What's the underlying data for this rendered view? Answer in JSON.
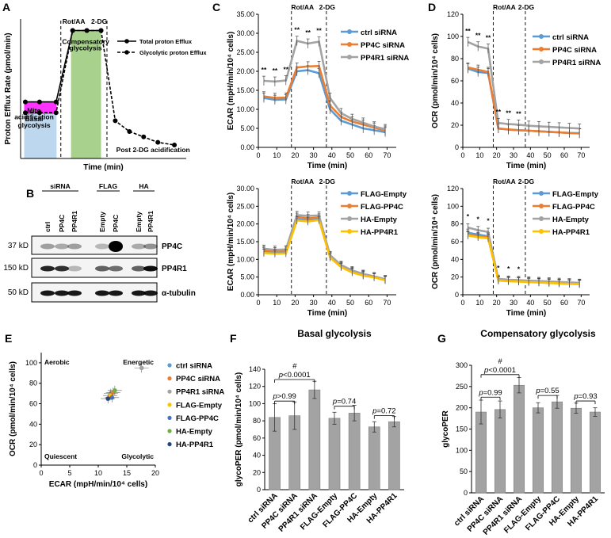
{
  "panels": {
    "A": "A",
    "B": "B",
    "C": "C",
    "D": "D",
    "E": "E",
    "F": "F",
    "G": "G"
  },
  "colors": {
    "gray": "#a3a3a3",
    "blue": "#5b9bd5",
    "orange": "#ed7d31",
    "yellow": "#ffc000",
    "darkblue": "#4472c4",
    "green": "#70ad47",
    "navy": "#264478",
    "pink": "#ff33ff",
    "lightblue": "#bdd7ee",
    "lightgreen": "#a9d18e"
  },
  "chart_data": [
    {
      "panel": "A",
      "type": "line",
      "ylabel": "Proton Efflux Rate (pmol/min)",
      "xlabel": "Time (min)",
      "markers": {
        "rot": "Rot/AA",
        "dg": "2-DG"
      },
      "regions": {
        "mito": "Mito acidification",
        "basal": "Basal glycolysis",
        "comp": "Compensatory glycolysis",
        "post": "Post 2-DG acidification"
      },
      "series": [
        {
          "name": "Total proton Efflux",
          "x": [
            2,
            8,
            15,
            22,
            28,
            34
          ],
          "y": [
            0.42,
            0.42,
            0.42,
            0.95,
            0.95,
            0.95
          ]
        },
        {
          "name": "Glycolytic proton Efflux",
          "x": [
            2,
            8,
            15,
            22,
            28,
            34,
            40,
            46,
            52,
            58,
            65
          ],
          "y": [
            0.34,
            0.34,
            0.34,
            0.95,
            0.95,
            0.95,
            0.28,
            0.2,
            0.16,
            0.12,
            0.1
          ]
        }
      ]
    },
    {
      "panel": "B",
      "type": "blot",
      "groups": [
        "siRNA",
        "FLAG",
        "HA"
      ],
      "lanes": [
        "ctrl",
        "PP4C",
        "PP4R1",
        "Empty",
        "PP4C",
        "Empty",
        "PP4R1"
      ],
      "mw": [
        "37 kD",
        "150 kD",
        "50 kD"
      ],
      "bands": [
        "PP4C",
        "PP4R1",
        "α-tubulin"
      ]
    },
    {
      "panel": "C1",
      "type": "line",
      "ylabel": "ECAR (mpH/min/10⁴ cells)",
      "xlabel": "Time (min)",
      "xlim": [
        0,
        75
      ],
      "ylim": [
        0,
        35
      ],
      "yticks": [
        "0.00",
        "5.00",
        "10.00",
        "15.00",
        "20.00",
        "25.00",
        "30.00",
        "35.00"
      ],
      "xticks": [
        "0",
        "10",
        "20",
        "30",
        "40",
        "50",
        "60",
        "70"
      ],
      "markers": {
        "rot": "Rot/AA",
        "dg": "2-DG"
      },
      "sig": "**",
      "x": [
        3,
        9,
        15,
        21,
        27,
        33,
        39,
        45,
        51,
        57,
        63,
        69
      ],
      "series": [
        {
          "name": "ctrl siRNA",
          "values": [
            13,
            12.5,
            12.6,
            20,
            20.3,
            19.5,
            10,
            7,
            6,
            5,
            4.5,
            4
          ]
        },
        {
          "name": "PP4C siRNA",
          "values": [
            13.4,
            13,
            13.1,
            21,
            21.3,
            21.4,
            11,
            8,
            6.8,
            6,
            5.2,
            4.4
          ]
        },
        {
          "name": "PP4R1 siRNA",
          "values": [
            17.5,
            17.3,
            17.6,
            28,
            27.3,
            27.8,
            13,
            9,
            7.5,
            6.5,
            5.5,
            4.8
          ]
        }
      ]
    },
    {
      "panel": "C2",
      "type": "line",
      "ylabel": "ECAR (mpH/min/10⁴ cells)",
      "xlabel": "Time (min)",
      "xlim": [
        0,
        75
      ],
      "ylim": [
        0,
        30
      ],
      "yticks": [
        "0.00",
        "5.00",
        "10.00",
        "15.00",
        "20.00",
        "25.00",
        "30.00"
      ],
      "xticks": [
        "0",
        "10",
        "20",
        "30",
        "40",
        "50",
        "60",
        "70"
      ],
      "markers": {
        "rot": "Rot/AA",
        "dg": "2-DG"
      },
      "x": [
        3,
        9,
        15,
        21,
        27,
        33,
        39,
        45,
        51,
        57,
        63,
        69
      ],
      "series": [
        {
          "name": "FLAG-Empty",
          "values": [
            12.2,
            11.9,
            12,
            21.4,
            21,
            21.3,
            10.8,
            8,
            6.5,
            5.5,
            5,
            4.2
          ]
        },
        {
          "name": "FLAG-PP4C",
          "values": [
            12.6,
            12.3,
            12.4,
            22,
            21.6,
            21.8,
            11,
            8.2,
            6.7,
            5.7,
            5.1,
            4.3
          ]
        },
        {
          "name": "HA-Empty",
          "values": [
            13,
            12.7,
            12.8,
            22.5,
            22.3,
            22.4,
            11.2,
            8.4,
            6.9,
            5.9,
            5.2,
            4.4
          ]
        },
        {
          "name": "HA-PP4R1",
          "values": [
            11.8,
            11.6,
            11.7,
            21,
            20.7,
            21.1,
            10.5,
            7.8,
            6.3,
            5.4,
            4.9,
            4.1
          ]
        }
      ]
    },
    {
      "panel": "D1",
      "type": "line",
      "ylabel": "OCR (pmol/min/10⁴ cells)",
      "xlabel": "Time (min)",
      "xlim": [
        0,
        75
      ],
      "ylim": [
        0,
        120
      ],
      "yticks": [
        "0",
        "20",
        "40",
        "60",
        "80",
        "100",
        "120"
      ],
      "xticks": [
        "0",
        "10",
        "20",
        "30",
        "40",
        "50",
        "60",
        "70"
      ],
      "markers": {
        "rot": "Rot/AA",
        "dg": "2-DG"
      },
      "sig": "**",
      "x": [
        3,
        9,
        15,
        21,
        27,
        33,
        39,
        45,
        51,
        57,
        63,
        69
      ],
      "series": [
        {
          "name": "ctrl siRNA",
          "values": [
            71,
            68,
            67,
            17,
            16,
            15.5,
            15,
            14.5,
            14,
            13.5,
            13,
            12.8
          ]
        },
        {
          "name": "PP4C siRNA",
          "values": [
            72,
            70,
            68,
            17,
            16.2,
            15.5,
            15,
            14.5,
            14,
            13.5,
            13,
            12.5
          ]
        },
        {
          "name": "PP4R1 siRNA",
          "values": [
            95,
            91,
            89,
            22,
            21,
            20.5,
            19.5,
            19,
            18.5,
            18,
            17.5,
            17
          ]
        }
      ]
    },
    {
      "panel": "D2",
      "type": "line",
      "ylabel": "OCR (pmol/min/10⁴ cells)",
      "xlabel": "Time (min)",
      "xlim": [
        0,
        75
      ],
      "ylim": [
        0,
        120
      ],
      "yticks": [
        "0",
        "20",
        "40",
        "60",
        "80",
        "100",
        "120"
      ],
      "xticks": [
        "0",
        "10",
        "20",
        "30",
        "40",
        "50",
        "60",
        "70"
      ],
      "markers": {
        "rot": "Rot/AA",
        "dg": "2-DG"
      },
      "sig": "*",
      "x": [
        3,
        9,
        15,
        21,
        27,
        33,
        39,
        45,
        51,
        57,
        63,
        69
      ],
      "series": [
        {
          "name": "FLAG-Empty",
          "values": [
            70,
            68,
            66,
            17,
            16,
            15.5,
            15,
            14.5,
            14,
            13.5,
            13,
            12.8
          ]
        },
        {
          "name": "FLAG-PP4C",
          "values": [
            68,
            66,
            65,
            16.5,
            15.5,
            15,
            14.5,
            14,
            13.5,
            13,
            12.5,
            12.3
          ]
        },
        {
          "name": "HA-Empty",
          "values": [
            76,
            73,
            71,
            18,
            17,
            16.5,
            16,
            15.5,
            15,
            14.5,
            14,
            13.5
          ]
        },
        {
          "name": "HA-PP4R1",
          "values": [
            67,
            65,
            64,
            16,
            15.3,
            14.8,
            14.3,
            13.8,
            13.3,
            12.8,
            12.3,
            12
          ]
        }
      ]
    },
    {
      "panel": "E",
      "type": "scatter",
      "xlabel": "ECAR (mpH/min/10⁴ cells)",
      "ylabel": "OCR (pmol/min/10⁴ cells)",
      "xlim": [
        0,
        20
      ],
      "ylim": [
        0,
        110
      ],
      "yticks": [
        "0",
        "20",
        "40",
        "60",
        "80",
        "100"
      ],
      "xticks": [
        "0",
        "5",
        "10",
        "15",
        "20"
      ],
      "quadrants": {
        "tl": "Aerobic",
        "tr": "Energetic",
        "bl": "Quiescent",
        "br": "Glycolytic"
      },
      "series": [
        {
          "name": "ctrl siRNA",
          "x": 12.2,
          "y": 70
        },
        {
          "name": "PP4C siRNA",
          "x": 12.6,
          "y": 71
        },
        {
          "name": "PP4R1 siRNA",
          "x": 17.6,
          "y": 95
        },
        {
          "name": "FLAG-Empty",
          "x": 12.1,
          "y": 68
        },
        {
          "name": "FLAG-PP4C",
          "x": 12.4,
          "y": 66
        },
        {
          "name": "HA-Empty",
          "x": 12.9,
          "y": 73
        },
        {
          "name": "HA-PP4R1",
          "x": 11.7,
          "y": 65
        }
      ]
    },
    {
      "panel": "F",
      "type": "bar",
      "title": "Basal glycolysis",
      "ylabel": "glycoPER (pmol/min/10⁴ cells)",
      "ylim": [
        0,
        140
      ],
      "yticks": [
        "0",
        "20",
        "40",
        "60",
        "80",
        "100",
        "120",
        "140"
      ],
      "categories": [
        "ctrl siRNA",
        "PP4C siRNA",
        "PP4R1 siRNA",
        "FLAG-Empty",
        "FLAG-PP4C",
        "HA-Empty",
        "HA-PP4R1"
      ],
      "values": [
        84,
        86,
        116,
        83,
        89,
        73,
        79
      ],
      "errors": [
        16,
        16,
        10,
        7,
        9,
        6,
        6
      ],
      "pvalues": [
        "p>0.99",
        "p<0.0001",
        "p=0.74",
        "p=0.72"
      ],
      "hash": "#"
    },
    {
      "panel": "G",
      "type": "bar",
      "title": "Compensatory glycolysis",
      "ylabel": "glycoPER",
      "ylim": [
        0,
        300
      ],
      "yticks": [
        "0",
        "50",
        "100",
        "150",
        "200",
        "250",
        "300"
      ],
      "categories": [
        "ctrl siRNA",
        "PP4C siRNA",
        "PP4R1 siRNA",
        "FLAG-Empty",
        "FLAG-PP4C",
        "HA-Empty",
        "HA-PP4R1"
      ],
      "values": [
        190,
        196,
        253,
        200,
        214,
        199,
        190
      ],
      "errors": [
        28,
        20,
        18,
        12,
        15,
        12,
        10
      ],
      "pvalues": [
        "p=0.99",
        "p<0.0001",
        "p=0.55",
        "p=0.93"
      ],
      "hash": "#"
    }
  ]
}
